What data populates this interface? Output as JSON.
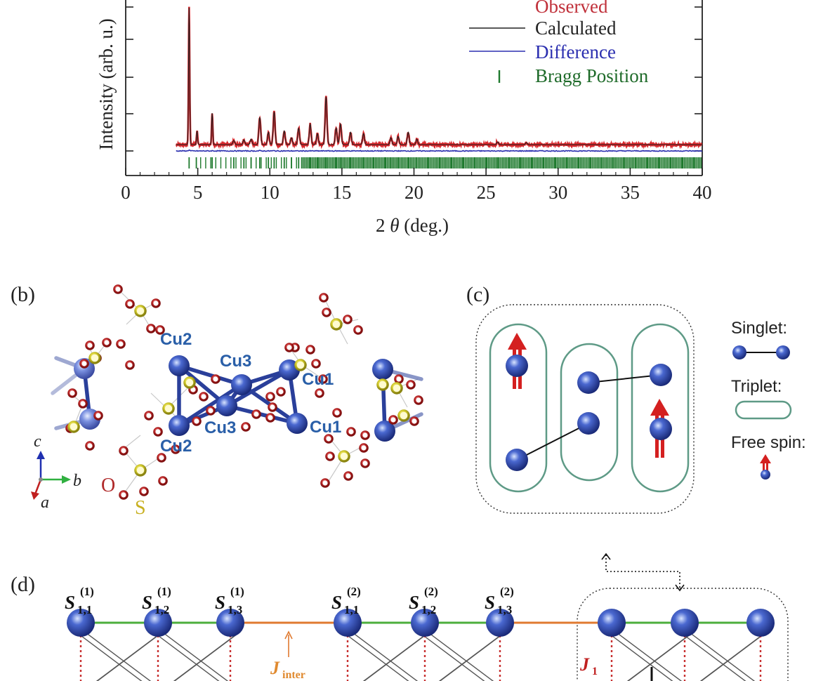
{
  "panel_a": {
    "ylabel": "Intensity (arb. u.)",
    "xlabel": "2 θ (deg.)",
    "xlabel_theta": "θ",
    "legend": {
      "observed": "Observed",
      "calculated": "Calculated",
      "difference": "Difference",
      "bragg": "Bragg Position"
    },
    "colors": {
      "observed": "#d9262b",
      "calculated": "#222222",
      "difference": "#2b2fb0",
      "bragg": "#1f7a2e",
      "legend_observed_text": "#c0303a",
      "legend_difference_text": "#2b2fb0",
      "legend_bragg_text": "#1f6b2a"
    }
  },
  "chart_data": {
    "type": "line",
    "xlabel": "2 θ (deg.)",
    "ylabel": "Intensity (arb. u.)",
    "xlim": [
      0,
      40
    ],
    "x_ticks": [
      0,
      5,
      10,
      15,
      20,
      25,
      30,
      35,
      40
    ],
    "x_tick_labels": [
      "0",
      "5",
      "10",
      "15",
      "20",
      "25",
      "30",
      "35",
      "40"
    ],
    "grid": false,
    "legend_position": "top-right",
    "baseline": 1.0,
    "peaks": [
      {
        "x": 4.4,
        "height": 10.0
      },
      {
        "x": 4.95,
        "height": 1.0
      },
      {
        "x": 6.0,
        "height": 2.3
      },
      {
        "x": 7.5,
        "height": 0.3
      },
      {
        "x": 8.2,
        "height": 0.35
      },
      {
        "x": 8.7,
        "height": 0.4
      },
      {
        "x": 9.3,
        "height": 2.0
      },
      {
        "x": 9.9,
        "height": 0.9
      },
      {
        "x": 10.3,
        "height": 2.4
      },
      {
        "x": 11.0,
        "height": 1.0
      },
      {
        "x": 11.5,
        "height": 0.5
      },
      {
        "x": 12.0,
        "height": 1.2
      },
      {
        "x": 12.8,
        "height": 1.5
      },
      {
        "x": 13.3,
        "height": 0.8
      },
      {
        "x": 13.9,
        "height": 3.5
      },
      {
        "x": 14.6,
        "height": 1.2
      },
      {
        "x": 14.9,
        "height": 1.5
      },
      {
        "x": 15.6,
        "height": 0.9
      },
      {
        "x": 16.5,
        "height": 0.8
      },
      {
        "x": 18.4,
        "height": 0.5
      },
      {
        "x": 18.9,
        "height": 0.6
      },
      {
        "x": 19.6,
        "height": 0.9
      },
      {
        "x": 20.2,
        "height": 0.4
      },
      {
        "x": 25.8,
        "height": 0.2
      },
      {
        "x": 27.8,
        "height": 0.15
      }
    ],
    "difference_level": 0.0,
    "bragg_positions": [
      4.4,
      4.9,
      6.0,
      7.5,
      8.2,
      8.7,
      9.3,
      9.9,
      10.3,
      11.0,
      11.5,
      12.0,
      12.8,
      13.3,
      13.9,
      14.6,
      14.9,
      15.6,
      16.5,
      17.2,
      18.0,
      18.4,
      18.9,
      19.6,
      20.2,
      21.0,
      21.8,
      22.6,
      23.4,
      24.2,
      25.0,
      25.8,
      26.6,
      27.4,
      28.2,
      29.0,
      29.8,
      30.6,
      31.4,
      32.2,
      33.0,
      33.8,
      34.6,
      35.4,
      36.2,
      37.0,
      37.8,
      38.6,
      39.4
    ],
    "series": [
      {
        "name": "Observed",
        "color": "#d9262b"
      },
      {
        "name": "Calculated",
        "color": "#222222"
      },
      {
        "name": "Difference",
        "color": "#2b2fb0"
      },
      {
        "name": "Bragg Position",
        "color": "#1f7a2e"
      }
    ]
  },
  "panel_b": {
    "label": "(b)",
    "atoms": {
      "cu2_top": "Cu2",
      "cu3_top": "Cu3",
      "cu1_top": "Cu1",
      "cu2_bottom": "Cu2",
      "cu3_bottom": "Cu3",
      "cu1_bottom": "Cu1",
      "oxygen": "O",
      "sulfur": "S"
    },
    "axes": {
      "c": "c",
      "b": "b",
      "a": "a"
    },
    "colors": {
      "cu": "#2a4aa8",
      "cu_label": "#2a5fa8",
      "oxygen": "#b02a2a",
      "sulfur": "#c8c020",
      "bond": "#2a3f9a"
    }
  },
  "panel_c": {
    "label": "(c)",
    "legend": {
      "singlet": "Singlet:",
      "triplet": "Triplet:",
      "free_spin": "Free spin:"
    },
    "colors": {
      "triplet_outline": "#5e9a86",
      "spin_arrow": "#d42020",
      "atom": "#2a3fa8"
    }
  },
  "panel_d": {
    "label": "(d)",
    "spin_labels": [
      {
        "main": "S",
        "sub": "1,1",
        "sup": "(1)"
      },
      {
        "main": "S",
        "sub": "1,2",
        "sup": "(1)"
      },
      {
        "main": "S",
        "sub": "1,3",
        "sup": "(1)"
      },
      {
        "main": "S",
        "sub": "1,1",
        "sup": "(2)"
      },
      {
        "main": "S",
        "sub": "1,2",
        "sup": "(2)"
      },
      {
        "main": "S",
        "sub": "1,3",
        "sup": "(2)"
      }
    ],
    "j_inter": {
      "main": "J",
      "sub": "inter"
    },
    "j1": {
      "main": "J",
      "sub": "1"
    },
    "colors": {
      "intra_bond": "#4cae3c",
      "inter_bond": "#e07a30",
      "j_inter_label": "#e08a30",
      "j1_label": "#c02020",
      "rung": "#c83030"
    }
  }
}
